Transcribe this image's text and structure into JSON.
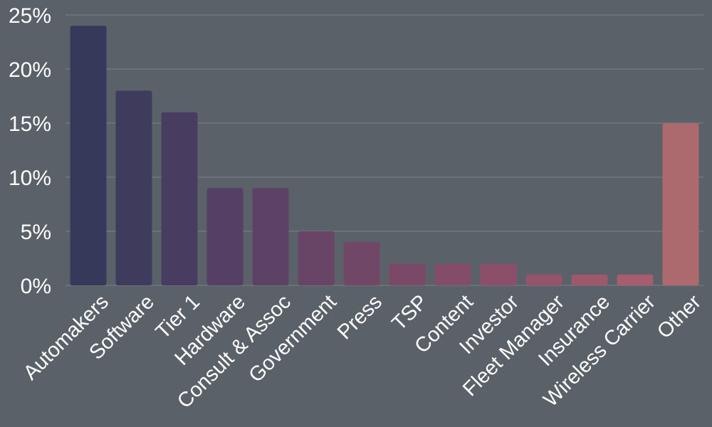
{
  "chart_data": {
    "type": "bar",
    "categories": [
      "Automakers",
      "Software",
      "Tier 1",
      "Hardware",
      "Consult & Assoc",
      "Government",
      "Press",
      "TSP",
      "Content",
      "Investor",
      "Fleet Manager",
      "Insurance",
      "Wireless Carrier",
      "Other"
    ],
    "values": [
      24,
      18,
      16,
      9,
      9,
      5,
      4,
      2,
      2,
      2,
      1,
      1,
      1,
      15
    ],
    "unit": "%",
    "ylim": [
      0,
      25
    ],
    "y_ticks": [
      "0%",
      "5%",
      "10%",
      "15%",
      "20%",
      "25%"
    ],
    "grid": true,
    "legend": "none",
    "colors": [
      "#37395a",
      "#3f3b5d",
      "#483d60",
      "#553f64",
      "#5e4266",
      "#684467",
      "#714768",
      "#7a4968",
      "#834c69",
      "#8c4f6a",
      "#95546b",
      "#9e586c",
      "#a65d6d",
      "#ac6a6f"
    ]
  }
}
